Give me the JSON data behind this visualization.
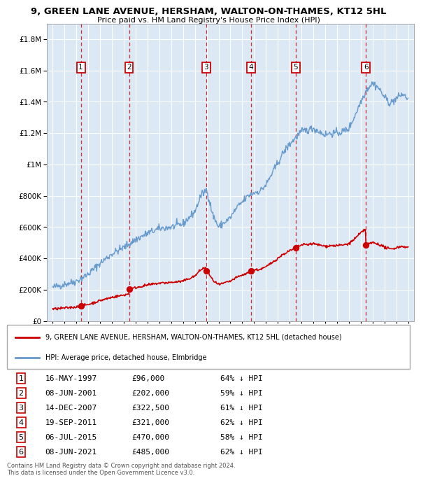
{
  "title_line1": "9, GREEN LANE AVENUE, HERSHAM, WALTON-ON-THAMES, KT12 5HL",
  "title_line2": "Price paid vs. HM Land Registry's House Price Index (HPI)",
  "background_color": "#ffffff",
  "plot_bg_color": "#dce9f5",
  "grid_color": "#ffffff",
  "sale_dates_x": [
    1997.37,
    2001.44,
    2007.96,
    2011.72,
    2015.51,
    2021.44
  ],
  "sale_prices_y": [
    96000,
    202000,
    322500,
    321000,
    470000,
    485000
  ],
  "sale_labels": [
    "1",
    "2",
    "3",
    "4",
    "5",
    "6"
  ],
  "legend_label_red": "9, GREEN LANE AVENUE, HERSHAM, WALTON-ON-THAMES, KT12 5HL (detached house)",
  "legend_label_blue": "HPI: Average price, detached house, Elmbridge",
  "table_rows": [
    [
      "1",
      "16-MAY-1997",
      "£96,000",
      "64% ↓ HPI"
    ],
    [
      "2",
      "08-JUN-2001",
      "£202,000",
      "59% ↓ HPI"
    ],
    [
      "3",
      "14-DEC-2007",
      "£322,500",
      "61% ↓ HPI"
    ],
    [
      "4",
      "19-SEP-2011",
      "£321,000",
      "62% ↓ HPI"
    ],
    [
      "5",
      "06-JUL-2015",
      "£470,000",
      "58% ↓ HPI"
    ],
    [
      "6",
      "08-JUN-2021",
      "£485,000",
      "62% ↓ HPI"
    ]
  ],
  "footer_text": "Contains HM Land Registry data © Crown copyright and database right 2024.\nThis data is licensed under the Open Government Licence v3.0.",
  "red_color": "#cc0000",
  "blue_color": "#6699cc",
  "ylim": [
    0,
    1900000
  ],
  "xlim": [
    1994.5,
    2025.5
  ],
  "hpi_knots_x": [
    1995.0,
    1996.0,
    1997.0,
    1998.0,
    1999.0,
    2000.0,
    2001.0,
    2002.0,
    2003.0,
    2004.0,
    2005.0,
    2006.0,
    2007.0,
    2007.5,
    2008.0,
    2008.5,
    2009.0,
    2009.5,
    2010.0,
    2010.5,
    2011.0,
    2011.5,
    2012.0,
    2012.5,
    2013.0,
    2013.5,
    2014.0,
    2014.5,
    2015.0,
    2015.5,
    2016.0,
    2016.5,
    2017.0,
    2017.5,
    2018.0,
    2018.5,
    2019.0,
    2019.5,
    2020.0,
    2020.5,
    2021.0,
    2021.5,
    2022.0,
    2022.5,
    2023.0,
    2023.5,
    2024.0,
    2024.5,
    2025.0
  ],
  "hpi_knots_y": [
    215000,
    235000,
    255000,
    300000,
    370000,
    430000,
    470000,
    520000,
    560000,
    590000,
    600000,
    620000,
    700000,
    800000,
    840000,
    680000,
    600000,
    630000,
    660000,
    720000,
    760000,
    800000,
    820000,
    830000,
    870000,
    940000,
    1010000,
    1080000,
    1130000,
    1170000,
    1210000,
    1220000,
    1230000,
    1210000,
    1190000,
    1200000,
    1200000,
    1210000,
    1230000,
    1310000,
    1400000,
    1480000,
    1520000,
    1490000,
    1430000,
    1390000,
    1420000,
    1450000,
    1420000
  ]
}
